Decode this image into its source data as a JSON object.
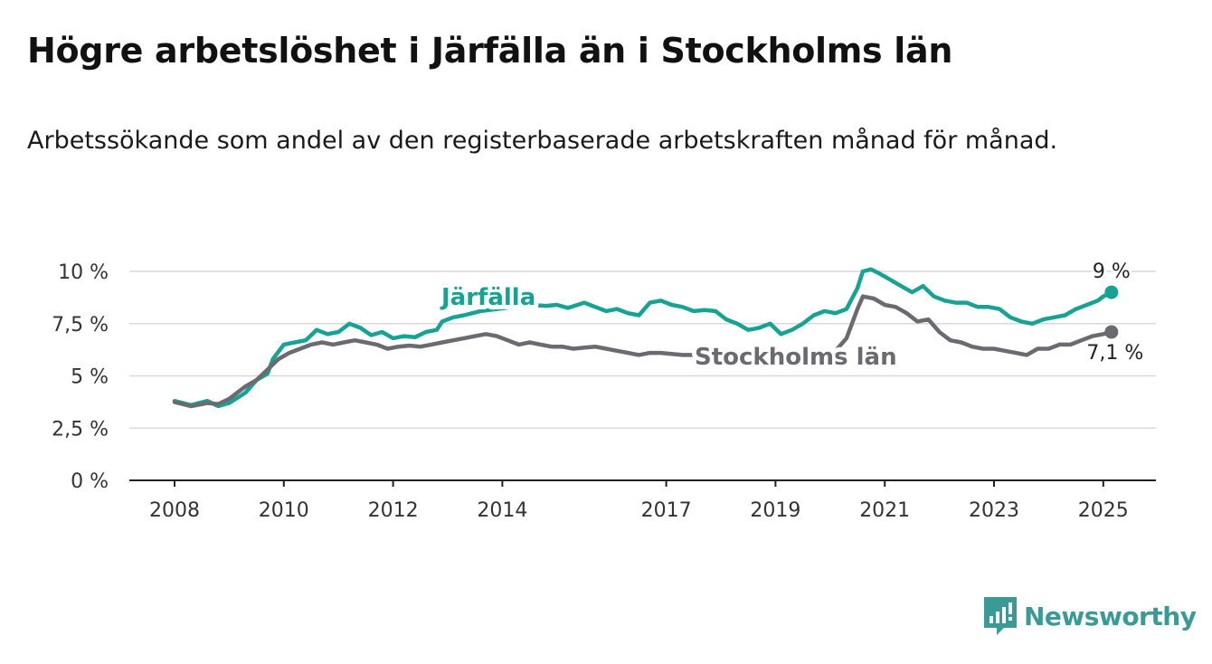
{
  "title": "Högre arbetslöshet i Järfälla än i Stockholms län",
  "subtitle": "Arbetssökande som andel av den registerbaserade arbetskraften månad för månad.",
  "brand": {
    "name": "Newsworthy",
    "color": "#3a9b96",
    "icon": "newsworthy-logo-icon"
  },
  "chart_data": {
    "type": "line",
    "xlim": [
      2008,
      2026
    ],
    "ylim": [
      0,
      10
    ],
    "grid": true,
    "y_ticks": [
      {
        "value": 0,
        "label": "0 %"
      },
      {
        "value": 2.5,
        "label": "2,5 %"
      },
      {
        "value": 5,
        "label": "5 %"
      },
      {
        "value": 7.5,
        "label": "7,5 %"
      },
      {
        "value": 10,
        "label": "10 %"
      }
    ],
    "x_ticks": [
      {
        "value": 2008,
        "label": "2008"
      },
      {
        "value": 2010,
        "label": "2010"
      },
      {
        "value": 2012,
        "label": "2012"
      },
      {
        "value": 2014,
        "label": "2014"
      },
      {
        "value": 2017,
        "label": "2017"
      },
      {
        "value": 2019,
        "label": "2019"
      },
      {
        "value": 2021,
        "label": "2021"
      },
      {
        "value": 2023,
        "label": "2023"
      },
      {
        "value": 2025,
        "label": "2025"
      }
    ],
    "series": [
      {
        "name": "Järfälla",
        "color": "#17a394",
        "end_label": "9 %",
        "points": [
          [
            2008.0,
            3.8
          ],
          [
            2008.3,
            3.6
          ],
          [
            2008.6,
            3.8
          ],
          [
            2008.8,
            3.55
          ],
          [
            2009.0,
            3.7
          ],
          [
            2009.3,
            4.2
          ],
          [
            2009.5,
            4.8
          ],
          [
            2009.7,
            5.1
          ],
          [
            2009.8,
            5.8
          ],
          [
            2010.0,
            6.5
          ],
          [
            2010.2,
            6.6
          ],
          [
            2010.4,
            6.7
          ],
          [
            2010.6,
            7.2
          ],
          [
            2010.8,
            7.0
          ],
          [
            2011.0,
            7.1
          ],
          [
            2011.2,
            7.5
          ],
          [
            2011.4,
            7.3
          ],
          [
            2011.6,
            6.95
          ],
          [
            2011.8,
            7.1
          ],
          [
            2012.0,
            6.8
          ],
          [
            2012.2,
            6.9
          ],
          [
            2012.4,
            6.85
          ],
          [
            2012.6,
            7.1
          ],
          [
            2012.8,
            7.2
          ],
          [
            2012.9,
            7.6
          ],
          [
            2013.1,
            7.8
          ],
          [
            2013.3,
            7.9
          ],
          [
            2013.6,
            8.1
          ],
          [
            2013.9,
            8.2
          ],
          [
            2014.2,
            8.3
          ],
          [
            2014.5,
            8.4
          ],
          [
            2014.8,
            8.35
          ],
          [
            2015.0,
            8.4
          ],
          [
            2015.2,
            8.25
          ],
          [
            2015.5,
            8.5
          ],
          [
            2015.7,
            8.3
          ],
          [
            2015.9,
            8.1
          ],
          [
            2016.1,
            8.2
          ],
          [
            2016.3,
            8.0
          ],
          [
            2016.5,
            7.9
          ],
          [
            2016.7,
            8.5
          ],
          [
            2016.9,
            8.6
          ],
          [
            2017.1,
            8.4
          ],
          [
            2017.3,
            8.3
          ],
          [
            2017.5,
            8.1
          ],
          [
            2017.7,
            8.15
          ],
          [
            2017.9,
            8.1
          ],
          [
            2018.1,
            7.7
          ],
          [
            2018.3,
            7.5
          ],
          [
            2018.5,
            7.2
          ],
          [
            2018.7,
            7.3
          ],
          [
            2018.9,
            7.5
          ],
          [
            2019.1,
            7.0
          ],
          [
            2019.3,
            7.2
          ],
          [
            2019.5,
            7.5
          ],
          [
            2019.7,
            7.9
          ],
          [
            2019.9,
            8.1
          ],
          [
            2020.1,
            8.0
          ],
          [
            2020.3,
            8.2
          ],
          [
            2020.5,
            9.2
          ],
          [
            2020.6,
            10.0
          ],
          [
            2020.75,
            10.1
          ],
          [
            2020.9,
            9.9
          ],
          [
            2021.1,
            9.6
          ],
          [
            2021.3,
            9.3
          ],
          [
            2021.5,
            9.0
          ],
          [
            2021.7,
            9.3
          ],
          [
            2021.9,
            8.8
          ],
          [
            2022.1,
            8.6
          ],
          [
            2022.3,
            8.5
          ],
          [
            2022.5,
            8.5
          ],
          [
            2022.7,
            8.3
          ],
          [
            2022.9,
            8.3
          ],
          [
            2023.1,
            8.2
          ],
          [
            2023.3,
            7.8
          ],
          [
            2023.5,
            7.6
          ],
          [
            2023.7,
            7.5
          ],
          [
            2023.9,
            7.7
          ],
          [
            2024.1,
            7.8
          ],
          [
            2024.3,
            7.9
          ],
          [
            2024.5,
            8.2
          ],
          [
            2024.7,
            8.4
          ],
          [
            2024.9,
            8.6
          ],
          [
            2025.0,
            8.8
          ],
          [
            2025.15,
            9.0
          ]
        ]
      },
      {
        "name": "Stockholms län",
        "color": "#6b6a70",
        "end_label": "7,1 %",
        "points": [
          [
            2008.0,
            3.75
          ],
          [
            2008.3,
            3.55
          ],
          [
            2008.6,
            3.7
          ],
          [
            2008.8,
            3.65
          ],
          [
            2009.0,
            3.9
          ],
          [
            2009.3,
            4.5
          ],
          [
            2009.5,
            4.8
          ],
          [
            2009.7,
            5.3
          ],
          [
            2009.9,
            5.8
          ],
          [
            2010.1,
            6.1
          ],
          [
            2010.3,
            6.3
          ],
          [
            2010.5,
            6.5
          ],
          [
            2010.7,
            6.6
          ],
          [
            2010.9,
            6.5
          ],
          [
            2011.1,
            6.6
          ],
          [
            2011.3,
            6.7
          ],
          [
            2011.5,
            6.6
          ],
          [
            2011.7,
            6.5
          ],
          [
            2011.9,
            6.3
          ],
          [
            2012.1,
            6.4
          ],
          [
            2012.3,
            6.45
          ],
          [
            2012.5,
            6.4
          ],
          [
            2012.7,
            6.5
          ],
          [
            2012.9,
            6.6
          ],
          [
            2013.1,
            6.7
          ],
          [
            2013.3,
            6.8
          ],
          [
            2013.5,
            6.9
          ],
          [
            2013.7,
            7.0
          ],
          [
            2013.9,
            6.9
          ],
          [
            2014.1,
            6.7
          ],
          [
            2014.3,
            6.5
          ],
          [
            2014.5,
            6.6
          ],
          [
            2014.7,
            6.5
          ],
          [
            2014.9,
            6.4
          ],
          [
            2015.1,
            6.4
          ],
          [
            2015.3,
            6.3
          ],
          [
            2015.5,
            6.35
          ],
          [
            2015.7,
            6.4
          ],
          [
            2015.9,
            6.3
          ],
          [
            2016.1,
            6.2
          ],
          [
            2016.3,
            6.1
          ],
          [
            2016.5,
            6.0
          ],
          [
            2016.7,
            6.1
          ],
          [
            2016.9,
            6.1
          ],
          [
            2017.1,
            6.05
          ],
          [
            2017.3,
            6.0
          ],
          [
            2017.5,
            6.0
          ],
          [
            2017.7,
            5.9
          ],
          [
            2018.1,
            5.75
          ],
          [
            2018.5,
            5.6
          ],
          [
            2019.0,
            5.5
          ],
          [
            2019.5,
            5.6
          ],
          [
            2020.0,
            5.9
          ],
          [
            2020.3,
            6.8
          ],
          [
            2020.5,
            8.2
          ],
          [
            2020.6,
            8.8
          ],
          [
            2020.8,
            8.7
          ],
          [
            2021.0,
            8.4
          ],
          [
            2021.2,
            8.3
          ],
          [
            2021.4,
            8.0
          ],
          [
            2021.6,
            7.6
          ],
          [
            2021.8,
            7.7
          ],
          [
            2022.0,
            7.1
          ],
          [
            2022.2,
            6.7
          ],
          [
            2022.4,
            6.6
          ],
          [
            2022.6,
            6.4
          ],
          [
            2022.8,
            6.3
          ],
          [
            2023.0,
            6.3
          ],
          [
            2023.2,
            6.2
          ],
          [
            2023.4,
            6.1
          ],
          [
            2023.6,
            6.0
          ],
          [
            2023.8,
            6.3
          ],
          [
            2024.0,
            6.3
          ],
          [
            2024.2,
            6.5
          ],
          [
            2024.4,
            6.5
          ],
          [
            2024.6,
            6.7
          ],
          [
            2024.8,
            6.9
          ],
          [
            2025.0,
            7.0
          ],
          [
            2025.15,
            7.1
          ]
        ]
      }
    ]
  }
}
